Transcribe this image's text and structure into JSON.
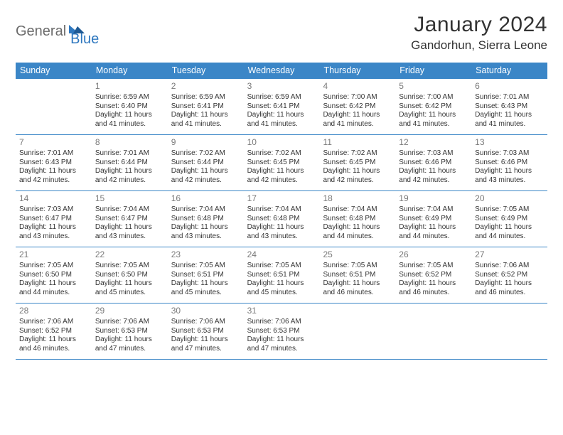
{
  "logo": {
    "word1": "General",
    "word2": "Blue"
  },
  "title": {
    "month": "January 2024",
    "location": "Gandorhun, Sierra Leone"
  },
  "colors": {
    "header_bg": "#3b86c7",
    "header_text": "#ffffff",
    "row_divider": "#3b86c7",
    "daynum": "#7a7a7a",
    "body_text": "#333333",
    "logo_gray": "#6b6b6b",
    "logo_blue": "#2f78bf",
    "page_bg": "#ffffff"
  },
  "calendar": {
    "headers": [
      "Sunday",
      "Monday",
      "Tuesday",
      "Wednesday",
      "Thursday",
      "Friday",
      "Saturday"
    ],
    "weeks": [
      [
        null,
        {
          "d": "1",
          "sr": "6:59 AM",
          "ss": "6:40 PM",
          "dl": "11 hours and 41 minutes."
        },
        {
          "d": "2",
          "sr": "6:59 AM",
          "ss": "6:41 PM",
          "dl": "11 hours and 41 minutes."
        },
        {
          "d": "3",
          "sr": "6:59 AM",
          "ss": "6:41 PM",
          "dl": "11 hours and 41 minutes."
        },
        {
          "d": "4",
          "sr": "7:00 AM",
          "ss": "6:42 PM",
          "dl": "11 hours and 41 minutes."
        },
        {
          "d": "5",
          "sr": "7:00 AM",
          "ss": "6:42 PM",
          "dl": "11 hours and 41 minutes."
        },
        {
          "d": "6",
          "sr": "7:01 AM",
          "ss": "6:43 PM",
          "dl": "11 hours and 41 minutes."
        }
      ],
      [
        {
          "d": "7",
          "sr": "7:01 AM",
          "ss": "6:43 PM",
          "dl": "11 hours and 42 minutes."
        },
        {
          "d": "8",
          "sr": "7:01 AM",
          "ss": "6:44 PM",
          "dl": "11 hours and 42 minutes."
        },
        {
          "d": "9",
          "sr": "7:02 AM",
          "ss": "6:44 PM",
          "dl": "11 hours and 42 minutes."
        },
        {
          "d": "10",
          "sr": "7:02 AM",
          "ss": "6:45 PM",
          "dl": "11 hours and 42 minutes."
        },
        {
          "d": "11",
          "sr": "7:02 AM",
          "ss": "6:45 PM",
          "dl": "11 hours and 42 minutes."
        },
        {
          "d": "12",
          "sr": "7:03 AM",
          "ss": "6:46 PM",
          "dl": "11 hours and 42 minutes."
        },
        {
          "d": "13",
          "sr": "7:03 AM",
          "ss": "6:46 PM",
          "dl": "11 hours and 43 minutes."
        }
      ],
      [
        {
          "d": "14",
          "sr": "7:03 AM",
          "ss": "6:47 PM",
          "dl": "11 hours and 43 minutes."
        },
        {
          "d": "15",
          "sr": "7:04 AM",
          "ss": "6:47 PM",
          "dl": "11 hours and 43 minutes."
        },
        {
          "d": "16",
          "sr": "7:04 AM",
          "ss": "6:48 PM",
          "dl": "11 hours and 43 minutes."
        },
        {
          "d": "17",
          "sr": "7:04 AM",
          "ss": "6:48 PM",
          "dl": "11 hours and 43 minutes."
        },
        {
          "d": "18",
          "sr": "7:04 AM",
          "ss": "6:48 PM",
          "dl": "11 hours and 44 minutes."
        },
        {
          "d": "19",
          "sr": "7:04 AM",
          "ss": "6:49 PM",
          "dl": "11 hours and 44 minutes."
        },
        {
          "d": "20",
          "sr": "7:05 AM",
          "ss": "6:49 PM",
          "dl": "11 hours and 44 minutes."
        }
      ],
      [
        {
          "d": "21",
          "sr": "7:05 AM",
          "ss": "6:50 PM",
          "dl": "11 hours and 44 minutes."
        },
        {
          "d": "22",
          "sr": "7:05 AM",
          "ss": "6:50 PM",
          "dl": "11 hours and 45 minutes."
        },
        {
          "d": "23",
          "sr": "7:05 AM",
          "ss": "6:51 PM",
          "dl": "11 hours and 45 minutes."
        },
        {
          "d": "24",
          "sr": "7:05 AM",
          "ss": "6:51 PM",
          "dl": "11 hours and 45 minutes."
        },
        {
          "d": "25",
          "sr": "7:05 AM",
          "ss": "6:51 PM",
          "dl": "11 hours and 46 minutes."
        },
        {
          "d": "26",
          "sr": "7:05 AM",
          "ss": "6:52 PM",
          "dl": "11 hours and 46 minutes."
        },
        {
          "d": "27",
          "sr": "7:06 AM",
          "ss": "6:52 PM",
          "dl": "11 hours and 46 minutes."
        }
      ],
      [
        {
          "d": "28",
          "sr": "7:06 AM",
          "ss": "6:52 PM",
          "dl": "11 hours and 46 minutes."
        },
        {
          "d": "29",
          "sr": "7:06 AM",
          "ss": "6:53 PM",
          "dl": "11 hours and 47 minutes."
        },
        {
          "d": "30",
          "sr": "7:06 AM",
          "ss": "6:53 PM",
          "dl": "11 hours and 47 minutes."
        },
        {
          "d": "31",
          "sr": "7:06 AM",
          "ss": "6:53 PM",
          "dl": "11 hours and 47 minutes."
        },
        null,
        null,
        null
      ]
    ],
    "labels": {
      "sunrise": "Sunrise:",
      "sunset": "Sunset:",
      "daylight": "Daylight:"
    }
  }
}
